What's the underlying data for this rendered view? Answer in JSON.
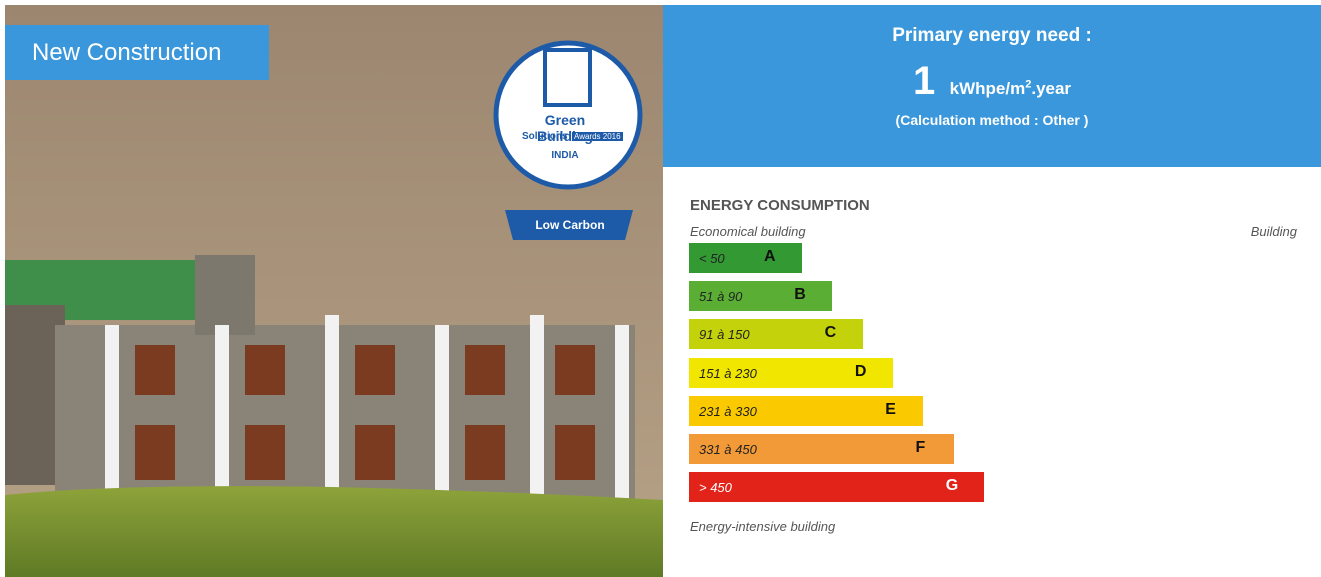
{
  "photo": {
    "tag": "New Construction",
    "badge": {
      "line1": "Green Building",
      "line2": "Solutions",
      "line3": "Awards 2016",
      "country": "INDIA",
      "ribbon": "Low Carbon"
    }
  },
  "primary_energy": {
    "title": "Primary energy need :",
    "value": "1",
    "unit": "kWhpe/m",
    "unit_sup": "2",
    "unit_tail": ".year",
    "method": "(Calculation method : Other )"
  },
  "energy_consumption": {
    "title": "ENERGY CONSUMPTION",
    "top_left": "Economical building",
    "top_right": "Building",
    "classes": [
      {
        "range": "< 50",
        "letter": "A",
        "color": "#339933"
      },
      {
        "range": "51 à 90",
        "letter": "B",
        "color": "#5aae34"
      },
      {
        "range": "91 à 150",
        "letter": "C",
        "color": "#c4d20b"
      },
      {
        "range": "151 à 230",
        "letter": "D",
        "color": "#f0e600"
      },
      {
        "range": "231 à 330",
        "letter": "E",
        "color": "#fbc900"
      },
      {
        "range": "331 à 450",
        "letter": "F",
        "color": "#f29a37"
      },
      {
        "range": "> 450",
        "letter": "G",
        "color": "#e2231a"
      }
    ],
    "bottom": "Energy-intensive building"
  }
}
